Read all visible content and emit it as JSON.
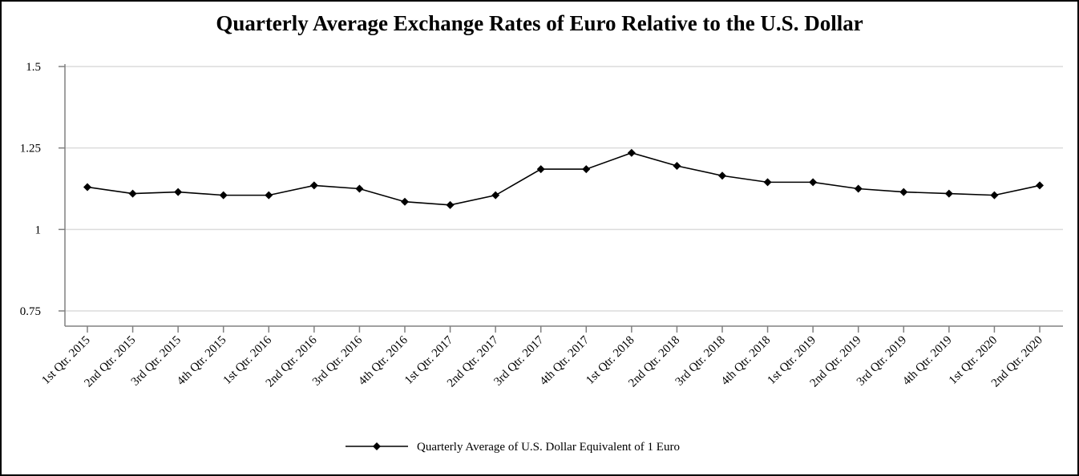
{
  "chart_data": {
    "type": "line",
    "title": "Quarterly Average Exchange Rates of Euro Relative to the U.S. Dollar",
    "xlabel": "",
    "ylabel": "",
    "ylim": [
      0.75,
      1.5
    ],
    "yticks": [
      "0.75",
      "1",
      "1.25",
      "1.5"
    ],
    "ytick_values": [
      0.75,
      1,
      1.25,
      1.5
    ],
    "grid": true,
    "legend_placement": "bottom-center",
    "categories": [
      "1st Qtr. 2015",
      "2nd Qtr. 2015",
      "3rd Qtr. 2015",
      "4th Qtr. 2015",
      "1st Qtr. 2016",
      "2nd Qtr. 2016",
      "3rd Qtr. 2016",
      "4th Qtr. 2016",
      "1st Qtr. 2017",
      "2nd Qtr. 2017",
      "3rd Qtr. 2017",
      "4th Qtr. 2017",
      "1st Qtr. 2018",
      "2nd Qtr. 2018",
      "3rd Qtr. 2018",
      "4th Qtr. 2018",
      "1st Qtr. 2019",
      "2nd Qtr. 2019",
      "3rd Qtr. 2019",
      "4th Qtr. 2019",
      "1st Qtr. 2020",
      "2nd Qtr. 2020"
    ],
    "series": [
      {
        "name": "Quarterly Average of U.S. Dollar Equivalent of 1 Euro",
        "color": "#000000",
        "marker": "diamond",
        "values": [
          1.13,
          1.11,
          1.115,
          1.105,
          1.105,
          1.135,
          1.125,
          1.085,
          1.075,
          1.105,
          1.185,
          1.185,
          1.235,
          1.195,
          1.165,
          1.145,
          1.145,
          1.125,
          1.115,
          1.11,
          1.105,
          1.135
        ]
      }
    ]
  }
}
